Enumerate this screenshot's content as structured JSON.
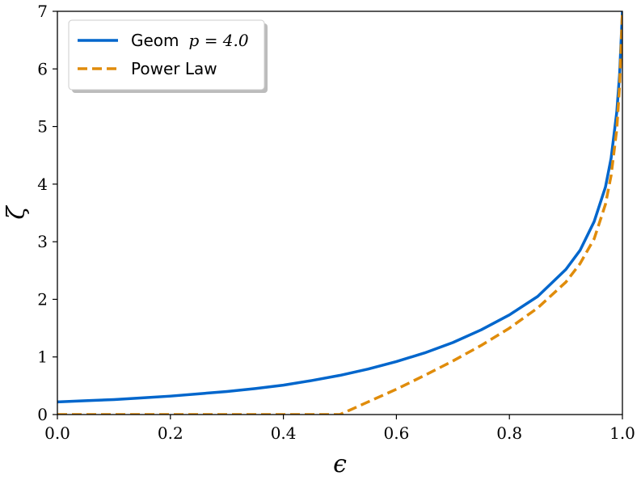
{
  "chart_data": {
    "type": "line",
    "xlabel": "ϵ",
    "ylabel": "ζ",
    "xlim": [
      0.0,
      1.0
    ],
    "ylim": [
      0,
      7
    ],
    "x_ticks": [
      "0.0",
      "0.2",
      "0.4",
      "0.6",
      "0.8",
      "1.0"
    ],
    "y_ticks": [
      "0",
      "1",
      "2",
      "3",
      "4",
      "5",
      "6",
      "7"
    ],
    "grid": false,
    "legend_position": "top-left",
    "series": [
      {
        "name": "Geom p = 4.0",
        "name_prefix": "Geom",
        "name_math": "p = 4.0",
        "color": "#0066cc",
        "style": "solid",
        "x": [
          0.0,
          0.05,
          0.1,
          0.15,
          0.2,
          0.25,
          0.3,
          0.35,
          0.4,
          0.45,
          0.5,
          0.55,
          0.6,
          0.65,
          0.7,
          0.75,
          0.8,
          0.85,
          0.9,
          0.925,
          0.95,
          0.97,
          0.98,
          0.99,
          0.995,
          1.0
        ],
        "y": [
          0.22,
          0.24,
          0.26,
          0.29,
          0.32,
          0.36,
          0.4,
          0.45,
          0.51,
          0.59,
          0.68,
          0.79,
          0.92,
          1.07,
          1.25,
          1.47,
          1.73,
          2.05,
          2.52,
          2.85,
          3.35,
          3.95,
          4.45,
          5.25,
          5.9,
          7.0
        ]
      },
      {
        "name": "Power Law",
        "color": "#e08c0b",
        "style": "dashed",
        "x": [
          0.0,
          0.1,
          0.2,
          0.3,
          0.4,
          0.5,
          0.55,
          0.6,
          0.65,
          0.7,
          0.75,
          0.8,
          0.85,
          0.9,
          0.925,
          0.95,
          0.97,
          0.98,
          0.99,
          0.995,
          1.0
        ],
        "y": [
          0.0,
          0.0,
          0.0,
          0.0,
          0.0,
          0.0,
          0.22,
          0.44,
          0.68,
          0.93,
          1.2,
          1.5,
          1.85,
          2.3,
          2.62,
          3.05,
          3.65,
          4.15,
          4.95,
          5.7,
          7.0
        ]
      }
    ]
  }
}
